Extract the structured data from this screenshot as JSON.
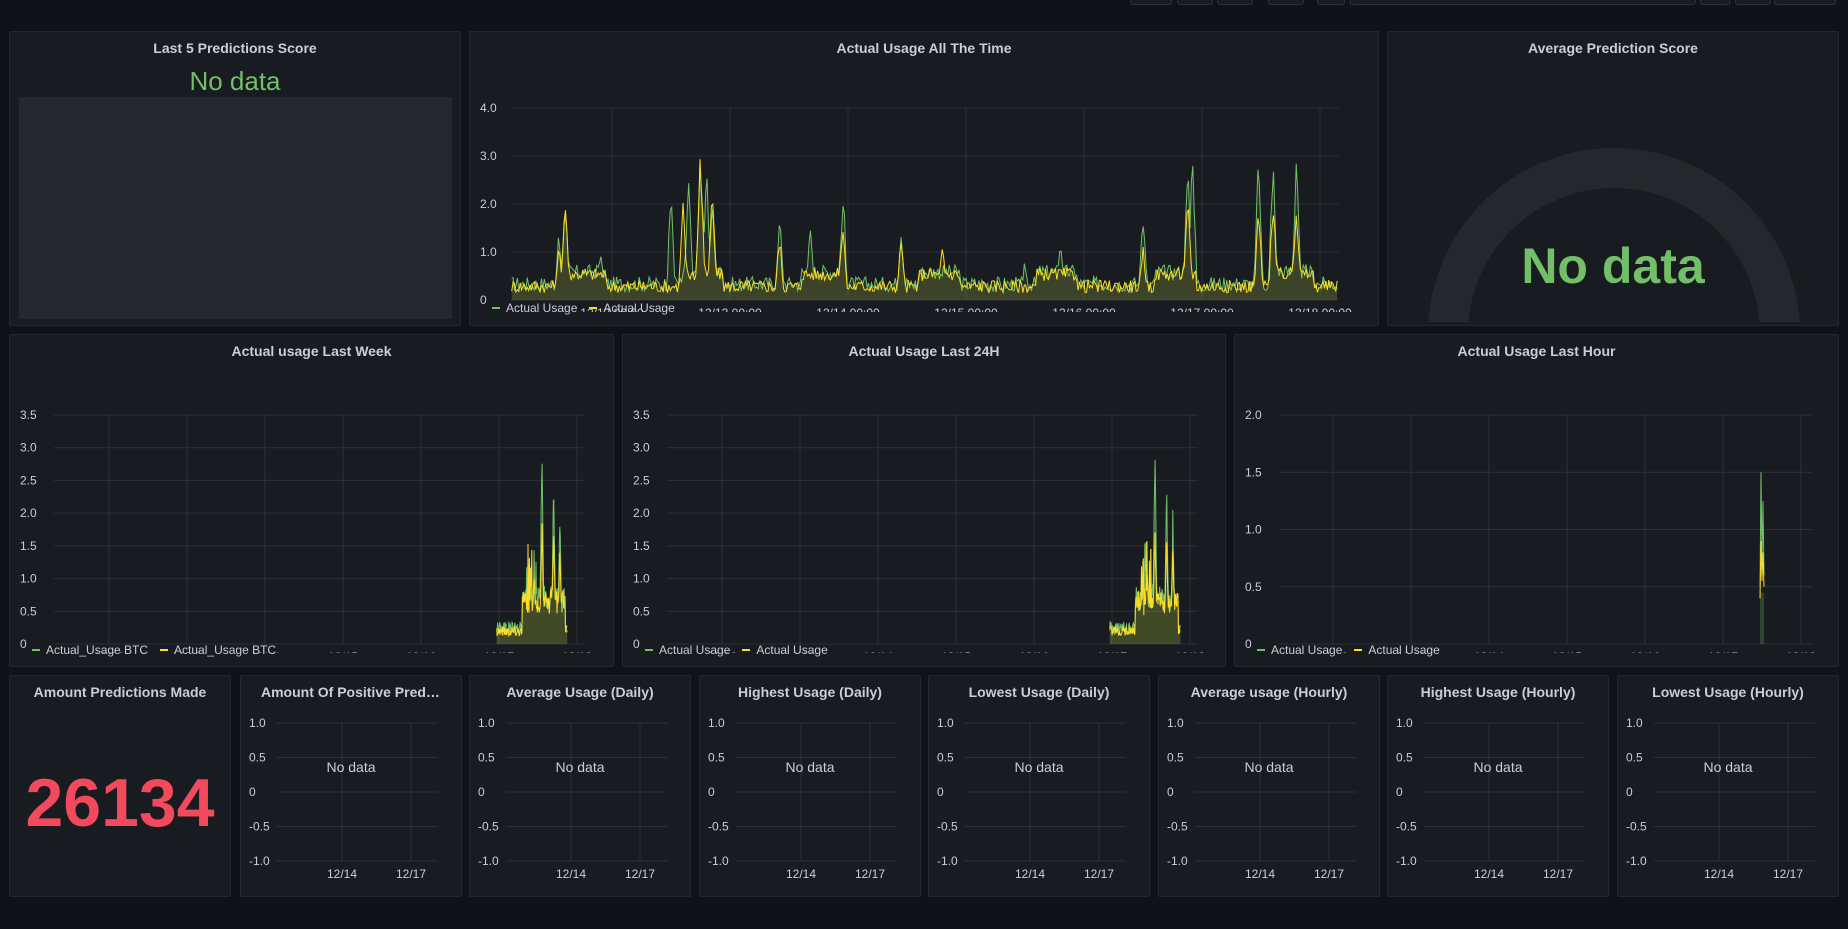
{
  "colors": {
    "green": "#73bf69",
    "yellow": "#fade2a",
    "red": "#f2495c",
    "grid": "#2c3038",
    "text": "#ccccdc",
    "panel": "#181b1f",
    "bg": "#111217"
  },
  "panels": {
    "last5": {
      "title": "Last 5 Predictions Score",
      "no_data": "No data"
    },
    "all_time": {
      "title": "Actual Usage All The Time",
      "legend": [
        "Actual Usage",
        "Actual Usage"
      ]
    },
    "avg_score": {
      "title": "Average Prediction Score",
      "no_data": "No data"
    },
    "last_week": {
      "title": "Actual usage Last Week",
      "legend": [
        "Actual_Usage BTC",
        "Actual_Usage BTC"
      ]
    },
    "last_24h": {
      "title": "Actual Usage Last 24H",
      "legend": [
        "Actual Usage",
        "Actual Usage"
      ]
    },
    "last_hour": {
      "title": "Actual Usage Last Hour",
      "legend": [
        "Actual Usage",
        "Actual Usage"
      ]
    },
    "amount": {
      "title": "Amount Predictions Made",
      "value": "26134"
    },
    "small": [
      {
        "title": "Amount Of Positive Predict...",
        "no_data": "No data"
      },
      {
        "title": "Average Usage (Daily)",
        "no_data": "No data"
      },
      {
        "title": "Highest Usage (Daily)",
        "no_data": "No data"
      },
      {
        "title": "Lowest Usage (Daily)",
        "no_data": "No data"
      },
      {
        "title": "Average usage (Hourly)",
        "no_data": "No data"
      },
      {
        "title": "Highest Usage (Hourly)",
        "no_data": "No data"
      },
      {
        "title": "Lowest Usage (Hourly)",
        "no_data": "No data"
      }
    ]
  },
  "chart_data": [
    {
      "type": "area",
      "id": "all_time",
      "title": "Actual Usage All The Time",
      "x_ticks": [
        "12/12 00:00",
        "12/13 00:00",
        "12/14 00:00",
        "12/15 00:00",
        "12/16 00:00",
        "12/17 00:00",
        "12/18 00:00"
      ],
      "y_ticks": [
        "4.0",
        "3.0",
        "2.0",
        "1.0",
        "0"
      ],
      "ylim": [
        0,
        4
      ],
      "x_range_days": [
        -0.85,
        6.15
      ],
      "series": [
        {
          "name": "Actual Usage",
          "color": "#73bf69",
          "spikes": [
            [
              -0.45,
              1.6
            ],
            [
              -0.4,
              2.3
            ],
            [
              -0.1,
              0.8
            ],
            [
              0.5,
              2.6
            ],
            [
              0.65,
              2.5
            ],
            [
              0.75,
              3.1
            ],
            [
              0.8,
              2.7
            ],
            [
              0.85,
              1.9
            ],
            [
              1.42,
              2.0
            ],
            [
              1.68,
              1.3
            ],
            [
              1.96,
              2.4
            ],
            [
              2.45,
              1.6
            ],
            [
              3.5,
              0.9
            ],
            [
              3.8,
              1.1
            ],
            [
              4.5,
              2.1
            ],
            [
              4.88,
              2.9
            ],
            [
              4.92,
              3.0
            ],
            [
              5.48,
              3.45
            ],
            [
              5.6,
              3.3
            ],
            [
              5.8,
              2.8
            ]
          ],
          "baseline": 0.35
        },
        {
          "name": "Actual Usage",
          "color": "#fade2a",
          "spikes": [
            [
              -0.45,
              1.2
            ],
            [
              -0.4,
              2.25
            ],
            [
              0.6,
              2.0
            ],
            [
              0.75,
              3.2
            ],
            [
              0.85,
              2.3
            ],
            [
              1.42,
              1.5
            ],
            [
              1.96,
              1.7
            ],
            [
              2.45,
              1.5
            ],
            [
              2.8,
              0.9
            ],
            [
              4.5,
              1.3
            ],
            [
              4.88,
              2.0
            ],
            [
              5.48,
              2.2
            ],
            [
              5.6,
              2.3
            ],
            [
              5.8,
              1.9
            ]
          ],
          "baseline": 0.3
        }
      ]
    },
    {
      "type": "area",
      "id": "last_week",
      "title": "Actual usage Last Week",
      "x_ticks": [
        "12/12",
        "12/13",
        "12/14",
        "12/15",
        "12/16",
        "12/17",
        "12/18"
      ],
      "y_ticks": [
        "3.5",
        "3.0",
        "2.5",
        "2.0",
        "1.5",
        "1.0",
        "0.5",
        "0"
      ],
      "ylim": [
        0,
        3.5
      ],
      "series": [
        {
          "name": "Actual_Usage BTC",
          "color": "#73bf69",
          "spikes": [
            [
              0.45,
              1.2
            ],
            [
              0.55,
              3.25
            ],
            [
              0.7,
              2.6
            ],
            [
              0.78,
              2.05
            ]
          ],
          "baseline": 0.25
        },
        {
          "name": "Actual_Usage BTC",
          "color": "#fade2a",
          "spikes": [
            [
              0.45,
              1.1
            ],
            [
              0.55,
              2.0
            ],
            [
              0.7,
              1.9
            ],
            [
              0.78,
              1.5
            ]
          ],
          "baseline": 0.2
        }
      ]
    },
    {
      "type": "area",
      "id": "last_24h",
      "title": "Actual Usage Last 24H",
      "x_ticks": [
        "12/12",
        "12/13",
        "12/14",
        "12/15",
        "12/16",
        "12/17",
        "12/18"
      ],
      "y_ticks": [
        "3.5",
        "3.0",
        "2.5",
        "2.0",
        "1.5",
        "1.0",
        "0.5",
        "0"
      ],
      "ylim": [
        0,
        3.5
      ],
      "series": [
        {
          "name": "Actual Usage",
          "color": "#73bf69",
          "spikes": [
            [
              0.45,
              1.3
            ],
            [
              0.55,
              3.25
            ],
            [
              0.7,
              2.6
            ],
            [
              0.78,
              2.05
            ]
          ],
          "baseline": 0.25
        },
        {
          "name": "Actual Usage",
          "color": "#fade2a",
          "spikes": [
            [
              0.45,
              1.1
            ],
            [
              0.55,
              1.9
            ],
            [
              0.7,
              1.8
            ],
            [
              0.78,
              1.5
            ]
          ],
          "baseline": 0.2
        }
      ]
    },
    {
      "type": "area",
      "id": "last_hour",
      "title": "Actual Usage Last Hour",
      "x_ticks": [
        "12/12",
        "12/13",
        "12/14",
        "12/15",
        "12/16",
        "12/17",
        "12/18"
      ],
      "y_ticks": [
        "2.0",
        "1.5",
        "1.0",
        "0.5",
        "0"
      ],
      "ylim": [
        0,
        2
      ],
      "series": [
        {
          "name": "Actual Usage",
          "color": "#73bf69",
          "spike": 1.5
        },
        {
          "name": "Actual Usage",
          "color": "#fade2a",
          "spike": 0.9
        }
      ]
    },
    {
      "type": "line",
      "id": "small_panels",
      "x_ticks": [
        "12/14",
        "12/17"
      ],
      "y_ticks": [
        "1.0",
        "0.5",
        "0",
        "-0.5",
        "-1.0"
      ],
      "ylim": [
        -1,
        1
      ]
    }
  ]
}
